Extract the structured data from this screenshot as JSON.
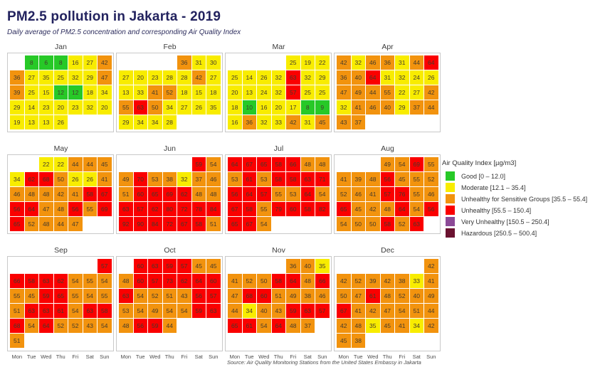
{
  "title": "PM2.5 pollution in Jakarta - 2019",
  "subtitle": "Daily average of PM2.5 concentration and corresponding Air Quality Index",
  "source": "Source: Air Quality Monitoring Stations from the United States Embassy in Jakarta",
  "day_labels": [
    "Mon",
    "Tue",
    "Wed",
    "Thu",
    "Fri",
    "Sat",
    "Sun"
  ],
  "legend": {
    "title": "Air Quality Index [µg/m3]",
    "items": [
      {
        "label": "Good [0 – 12.0]",
        "color": "#27c927",
        "max": 12.0
      },
      {
        "label": "Moderate [12.1 – 35.4]",
        "color": "#f8ec00",
        "max": 35.4
      },
      {
        "label": "Unhealthy for Sensitive Groups [35.5 – 55.4]",
        "color": "#f2930e",
        "max": 55.4
      },
      {
        "label": "Unhealthy [55.5 – 150.4]",
        "color": "#fa0000",
        "max": 150.4
      },
      {
        "label": "Very Unhealthy [150.5 – 250.4]",
        "color": "#8c4a97",
        "max": 250.4
      },
      {
        "label": "Hazardous [250.5 – 500.4]",
        "color": "#6a1230",
        "max": 500.4
      }
    ]
  },
  "chart_data": {
    "type": "heatmap",
    "title": "PM2.5 pollution in Jakarta - 2019",
    "unit": "µg/m3",
    "weekday_order": [
      "Mon",
      "Tue",
      "Wed",
      "Thu",
      "Fri",
      "Sat",
      "Sun"
    ],
    "months": [
      {
        "name": "Jan",
        "weeks": [
          [
            null,
            8,
            6,
            8,
            16,
            27,
            42
          ],
          [
            36,
            27,
            35,
            25,
            32,
            29,
            47
          ],
          [
            39,
            25,
            15,
            12,
            12,
            18,
            34
          ],
          [
            29,
            14,
            23,
            20,
            23,
            32,
            20
          ],
          [
            19,
            13,
            13,
            26,
            null,
            null,
            null
          ]
        ]
      },
      {
        "name": "Feb",
        "weeks": [
          [
            null,
            null,
            null,
            null,
            36,
            31,
            30
          ],
          [
            27,
            20,
            23,
            28,
            28,
            42,
            27
          ],
          [
            13,
            33,
            41,
            52,
            18,
            15,
            18
          ],
          [
            55,
            63,
            50,
            34,
            27,
            26,
            35
          ],
          [
            29,
            34,
            34,
            28,
            null,
            null,
            null
          ]
        ]
      },
      {
        "name": "Mar",
        "weeks": [
          [
            null,
            null,
            null,
            null,
            25,
            19,
            22
          ],
          [
            25,
            14,
            26,
            32,
            63,
            32,
            29
          ],
          [
            20,
            13,
            24,
            32,
            57,
            25,
            25
          ],
          [
            18,
            10,
            16,
            20,
            17,
            8,
            9
          ],
          [
            16,
            36,
            32,
            33,
            42,
            31,
            45
          ]
        ]
      },
      {
        "name": "Apr",
        "weeks": [
          [
            42,
            32,
            46,
            36,
            31,
            44,
            64
          ],
          [
            36,
            40,
            64,
            31,
            32,
            24,
            26
          ],
          [
            47,
            49,
            44,
            55,
            22,
            27,
            42
          ],
          [
            32,
            41,
            46,
            40,
            29,
            37,
            44
          ],
          [
            43,
            37,
            null,
            null,
            null,
            null,
            null
          ]
        ]
      },
      {
        "name": "May",
        "weeks": [
          [
            null,
            null,
            22,
            22,
            44,
            44,
            45
          ],
          [
            34,
            62,
            68,
            50,
            26,
            26,
            41
          ],
          [
            46,
            48,
            48,
            42,
            41,
            58,
            67
          ],
          [
            56,
            64,
            47,
            48,
            56,
            55,
            69
          ],
          [
            65,
            52,
            48,
            44,
            47,
            null,
            null
          ]
        ]
      },
      {
        "name": "Jun",
        "weeks": [
          [
            null,
            null,
            null,
            null,
            null,
            59,
            54
          ],
          [
            49,
            70,
            53,
            38,
            32,
            37,
            46
          ],
          [
            51,
            60,
            65,
            69,
            62,
            48,
            48
          ],
          [
            63,
            57,
            62,
            80,
            72,
            78,
            84
          ],
          [
            92,
            90,
            84,
            72,
            67,
            58,
            51
          ]
        ]
      },
      {
        "name": "Jul",
        "weeks": [
          [
            64,
            67,
            65,
            58,
            66,
            48,
            48
          ],
          [
            53,
            61,
            53,
            58,
            58,
            63,
            71
          ],
          [
            56,
            64,
            57,
            55,
            53,
            64,
            54
          ],
          [
            67,
            58,
            55,
            79,
            60,
            58,
            82
          ],
          [
            65,
            67,
            54,
            null,
            null,
            null,
            null
          ]
        ]
      },
      {
        "name": "Aug",
        "weeks": [
          [
            null,
            null,
            null,
            49,
            54,
            69,
            55
          ],
          [
            41,
            39,
            48,
            56,
            45,
            55,
            52
          ],
          [
            52,
            46,
            41,
            57,
            76,
            55,
            46
          ],
          [
            65,
            45,
            42,
            48,
            64,
            54,
            56
          ],
          [
            54,
            50,
            50,
            58,
            52,
            63,
            null
          ]
        ]
      },
      {
        "name": "Sep",
        "weeks": [
          [
            null,
            null,
            null,
            null,
            null,
            null,
            57
          ],
          [
            66,
            58,
            63,
            62,
            54,
            55,
            54
          ],
          [
            55,
            45,
            59,
            65,
            55,
            54,
            55
          ],
          [
            51,
            63,
            63,
            61,
            54,
            63,
            58
          ],
          [
            68,
            54,
            64,
            52,
            52,
            43,
            54
          ],
          [
            51,
            null,
            null,
            null,
            null,
            null,
            null
          ]
        ]
      },
      {
        "name": "Oct",
        "weeks": [
          [
            null,
            60,
            63,
            59,
            57,
            45,
            45
          ],
          [
            48,
            60,
            57,
            73,
            62,
            64,
            60
          ],
          [
            63,
            54,
            52,
            51,
            43,
            56,
            57
          ],
          [
            53,
            54,
            49,
            54,
            54,
            59,
            63
          ],
          [
            48,
            56,
            59,
            44,
            null,
            null,
            null
          ]
        ]
      },
      {
        "name": "Nov",
        "weeks": [
          [
            null,
            null,
            null,
            null,
            36,
            40,
            35
          ],
          [
            41,
            52,
            50,
            58,
            64,
            48,
            66
          ],
          [
            47,
            68,
            60,
            51,
            49,
            38,
            46
          ],
          [
            44,
            34,
            40,
            43,
            59,
            63,
            57
          ],
          [
            65,
            61,
            54,
            64,
            48,
            37,
            null
          ]
        ]
      },
      {
        "name": "Dec",
        "weeks": [
          [
            null,
            null,
            null,
            null,
            null,
            null,
            42
          ],
          [
            42,
            52,
            39,
            42,
            38,
            33,
            41
          ],
          [
            50,
            47,
            61,
            48,
            52,
            40,
            49
          ],
          [
            67,
            41,
            42,
            47,
            54,
            51,
            44
          ],
          [
            42,
            48,
            35,
            45,
            41,
            34,
            42
          ],
          [
            45,
            38,
            null,
            null,
            null,
            null,
            null
          ]
        ]
      }
    ]
  }
}
